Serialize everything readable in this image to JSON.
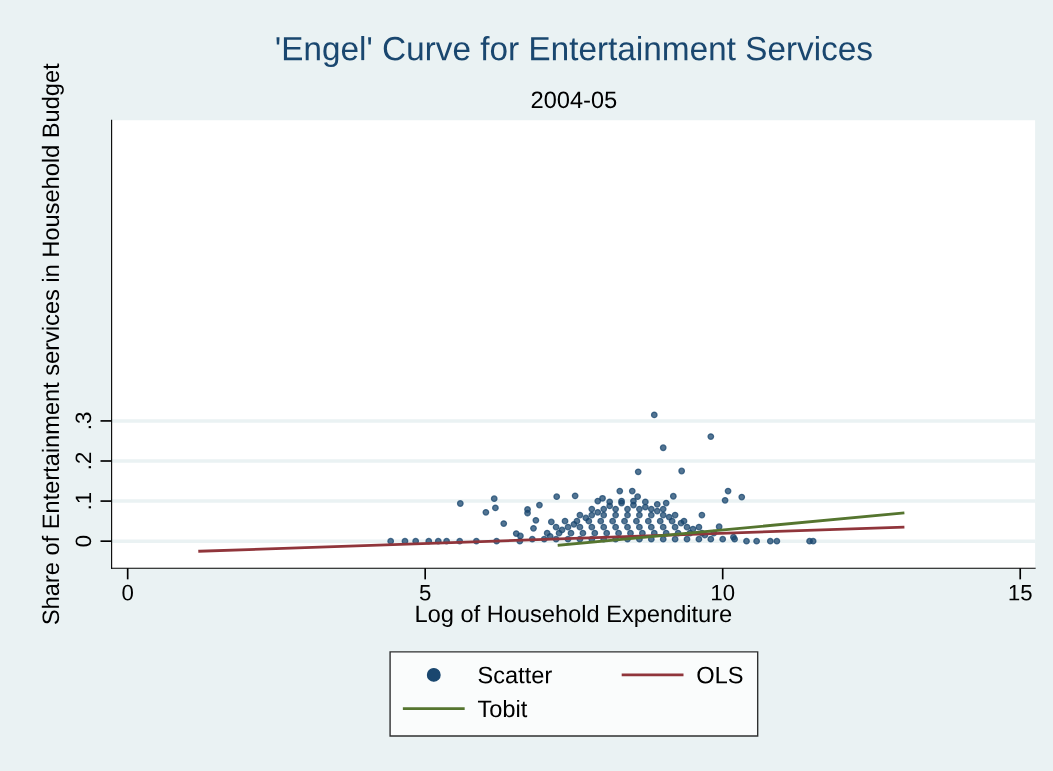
{
  "chart_data": {
    "type": "scatter",
    "title": "'Engel' Curve for Entertainment Services",
    "subtitle": "2004-05",
    "xlabel": "Log of Household Expenditure",
    "ylabel": "Share of Entertainment services in Household Budget",
    "xlim": [
      -0.27,
      15.25
    ],
    "ylim": [
      -0.0675,
      1.05
    ],
    "xticks": [
      0,
      5,
      10,
      15
    ],
    "yticks": [
      {
        "value": 0,
        "label": "0"
      },
      {
        "value": 0.1,
        "label": ".1"
      },
      {
        "value": 0.2,
        "label": ".2"
      },
      {
        "value": 0.3,
        "label": ".3"
      }
    ],
    "grid": "y",
    "legend": "bottom",
    "series": [
      {
        "name": "Scatter",
        "marker": "circle",
        "color": "#1a476f",
        "x": [
          8.85,
          9.8,
          9.0,
          8.58,
          9.31,
          10.09,
          10.04,
          10.32,
          5.59,
          6.16,
          6.18,
          6.02,
          6.32,
          6.72,
          6.72,
          6.53,
          6.6,
          4.42,
          4.66,
          4.84,
          5.06,
          5.22,
          5.36,
          5.58,
          5.86,
          6.2,
          6.59,
          10.4,
          10.57,
          10.8,
          10.91,
          11.46,
          11.52,
          10.18,
          7.21,
          7.52,
          7.98,
          8.27,
          8.48,
          8.57,
          9.17,
          9.05,
          9.65,
          9.94,
          6.92,
          6.86,
          6.82,
          7.12,
          6.8,
          7.0,
          7.2,
          7.4,
          7.6,
          7.8,
          8.0,
          8.2,
          8.4,
          8.6,
          8.8,
          9.0,
          9.2,
          9.4,
          9.6,
          9.8,
          10.0,
          10.2,
          7.05,
          7.25,
          7.45,
          7.65,
          7.85,
          8.05,
          8.25,
          8.45,
          8.65,
          8.85,
          9.05,
          9.25,
          9.45,
          9.65,
          9.85,
          7.2,
          7.4,
          7.6,
          7.8,
          8.0,
          8.2,
          8.4,
          8.6,
          8.8,
          9.0,
          9.2,
          9.4,
          9.6,
          7.35,
          7.55,
          7.75,
          7.95,
          8.15,
          8.35,
          8.55,
          8.75,
          8.95,
          9.15,
          9.35,
          7.6,
          7.8,
          8.0,
          8.2,
          8.4,
          8.6,
          8.8,
          9.0,
          9.2,
          7.8,
          8.0,
          8.2,
          8.4,
          8.6,
          8.8,
          9.0,
          7.1,
          7.3,
          7.5,
          7.7,
          7.9,
          8.1,
          8.3,
          8.5,
          8.7,
          8.9,
          9.1,
          9.3,
          9.5,
          9.7,
          7.9,
          8.1,
          8.3,
          8.5,
          8.7,
          8.9
        ],
        "values": [
          0.315,
          0.261,
          0.233,
          0.173,
          0.175,
          0.125,
          0.102,
          0.11,
          0.094,
          0.106,
          0.083,
          0.072,
          0.044,
          0.079,
          0.07,
          0.019,
          0.013,
          0.0,
          0.0,
          0.0,
          0.0,
          0.0,
          0.0,
          0.0,
          0.0,
          0.0,
          0.0,
          0.0,
          0.0,
          0.0,
          0.0,
          0.0,
          0.0,
          0.01,
          0.111,
          0.113,
          0.107,
          0.125,
          0.125,
          0.111,
          0.112,
          0.095,
          0.065,
          0.036,
          0.09,
          0.052,
          0.032,
          0.048,
          0.005,
          0.005,
          0.005,
          0.005,
          0.005,
          0.005,
          0.005,
          0.005,
          0.005,
          0.005,
          0.005,
          0.005,
          0.005,
          0.005,
          0.005,
          0.005,
          0.005,
          0.005,
          0.02,
          0.02,
          0.02,
          0.02,
          0.02,
          0.02,
          0.02,
          0.02,
          0.02,
          0.02,
          0.02,
          0.02,
          0.02,
          0.02,
          0.02,
          0.035,
          0.035,
          0.035,
          0.035,
          0.035,
          0.035,
          0.035,
          0.035,
          0.035,
          0.035,
          0.035,
          0.035,
          0.035,
          0.05,
          0.05,
          0.05,
          0.05,
          0.05,
          0.05,
          0.05,
          0.05,
          0.05,
          0.05,
          0.05,
          0.065,
          0.065,
          0.065,
          0.065,
          0.065,
          0.065,
          0.065,
          0.065,
          0.065,
          0.08,
          0.08,
          0.08,
          0.08,
          0.08,
          0.08,
          0.08,
          0.012,
          0.028,
          0.042,
          0.058,
          0.072,
          0.088,
          0.095,
          0.09,
          0.085,
          0.075,
          0.06,
          0.045,
          0.03,
          0.015,
          0.1,
          0.098,
          0.1,
          0.1,
          0.098,
          0.092
        ]
      },
      {
        "name": "OLS",
        "type": "line",
        "color": "#90353b",
        "x": [
          1.21,
          13.03
        ],
        "values": [
          -0.025,
          0.035
        ]
      },
      {
        "name": "Tobit",
        "type": "line",
        "color": "#55752f",
        "x": [
          7.25,
          13.03
        ],
        "values": [
          -0.01,
          0.07
        ]
      }
    ]
  }
}
